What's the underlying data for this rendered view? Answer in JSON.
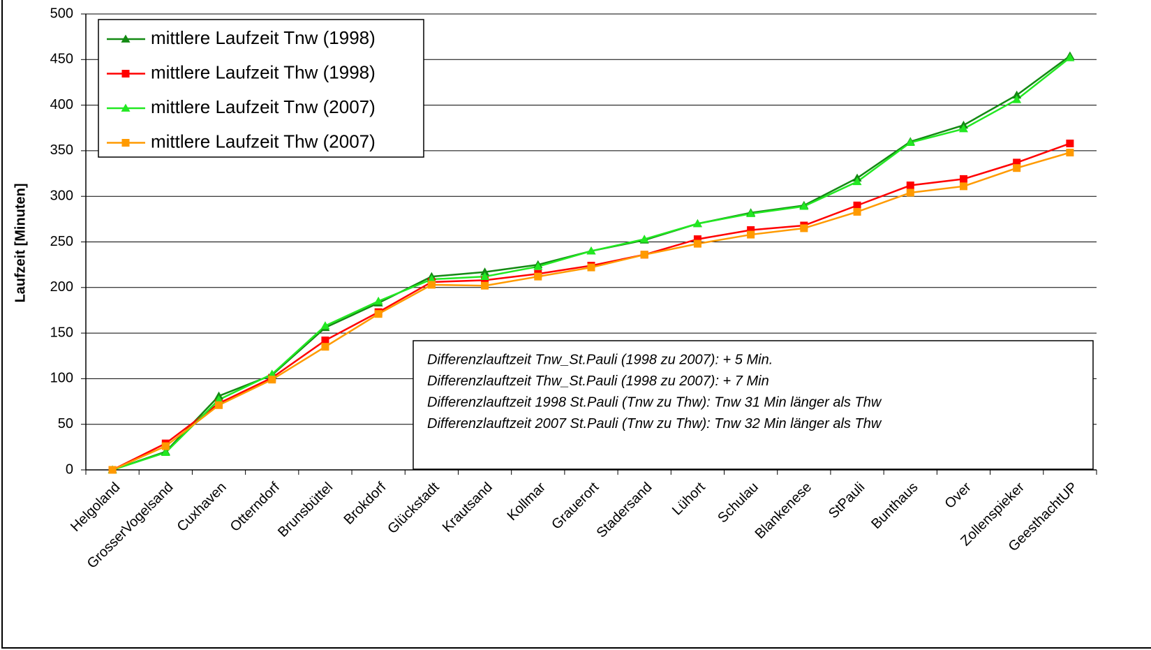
{
  "chart_data": {
    "type": "line",
    "y_label": "Laufzeit [Minuten]",
    "categories": [
      "Helgoland",
      "GrosserVogelsand",
      "Cuxhaven",
      "Otterndorf",
      "Brunsbüttel",
      "Brokdorf",
      "Glückstadt",
      "Krautsand",
      "Kollmar",
      "Grauerort",
      "Stadersand",
      "Lühort",
      "Schulau",
      "Blankenese",
      "StPauli",
      "Bunthaus",
      "Over",
      "Zollenspieker",
      "GeesthachtUP"
    ],
    "series": [
      {
        "name": "mittlere Laufzeit Tnw (1998)",
        "color": "#138a13",
        "marker": "triangle",
        "values": [
          0,
          20,
          81,
          104,
          156,
          183,
          212,
          217,
          225,
          240,
          252,
          270,
          282,
          290,
          320,
          360,
          378,
          411,
          454
        ]
      },
      {
        "name": "mittlere Laufzeit Thw (1998)",
        "color": "#ff0000",
        "marker": "square",
        "values": [
          0,
          29,
          73,
          101,
          142,
          173,
          206,
          208,
          215,
          224,
          236,
          253,
          263,
          268,
          290,
          312,
          319,
          337,
          358
        ]
      },
      {
        "name": "mittlere Laufzeit Tnw (2007)",
        "color": "#22e822",
        "marker": "triangle",
        "values": [
          0,
          19,
          77,
          105,
          158,
          185,
          209,
          212,
          223,
          240,
          253,
          270,
          281,
          289,
          316,
          359,
          374,
          406,
          452
        ]
      },
      {
        "name": "mittlere Laufzeit Thw (2007)",
        "color": "#ff9a00",
        "marker": "square",
        "values": [
          0,
          26,
          71,
          99,
          135,
          171,
          203,
          202,
          212,
          222,
          236,
          248,
          258,
          265,
          283,
          304,
          311,
          331,
          348
        ]
      }
    ],
    "ylim": [
      0,
      500
    ],
    "yticks": [
      0,
      50,
      100,
      150,
      200,
      250,
      300,
      350,
      400,
      450,
      500
    ],
    "grid": true,
    "legend": "top-left",
    "annotations": [
      "Differenzlauftzeit Tnw_St.Pauli (1998 zu 2007): + 5 Min.",
      "Differenzlauftzeit Thw_St.Pauli (1998 zu 2007): + 7 Min",
      "Differenzlauftzeit 1998 St.Pauli (Tnw zu Thw): Tnw 31 Min länger als Thw",
      "Differenzlauftzeit 2007 St.Pauli (Tnw zu Thw): Tnw 32 Min länger als Thw"
    ]
  }
}
